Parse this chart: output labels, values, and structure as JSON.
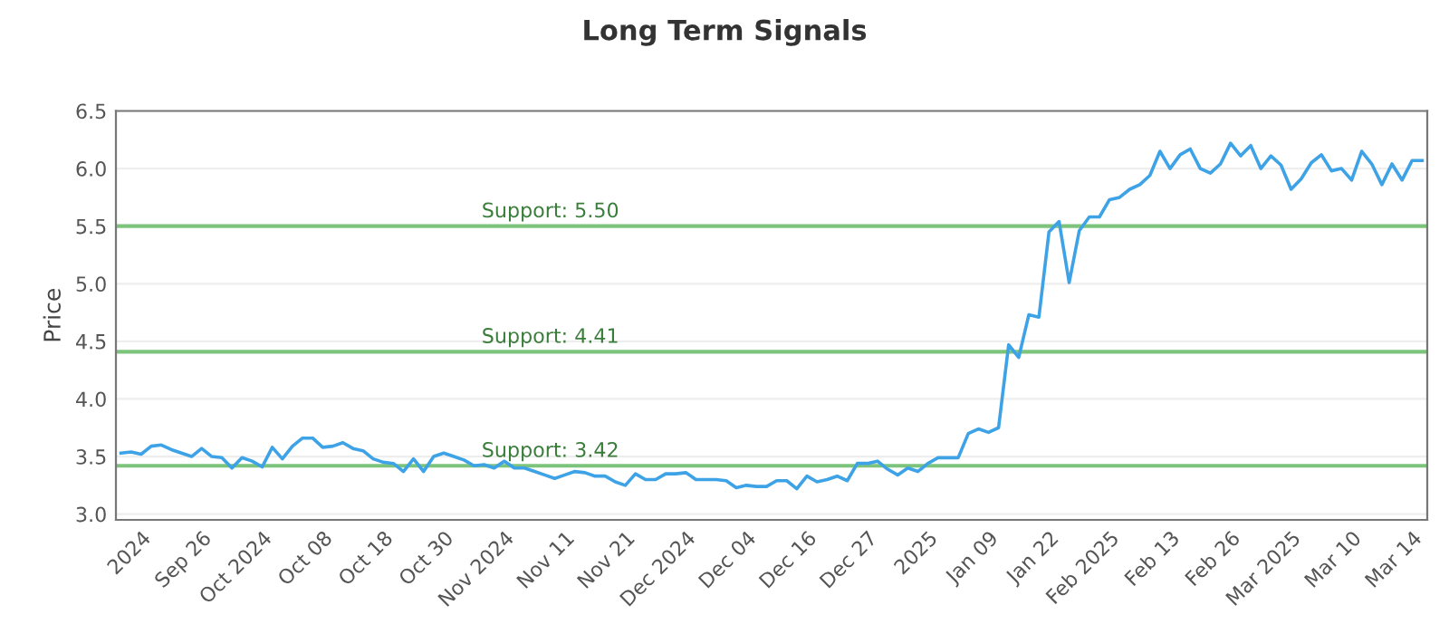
{
  "chart_data": {
    "type": "line",
    "title": "Long Term Signals",
    "ylabel": "Price",
    "categories": [
      null,
      null,
      "2024",
      null,
      null,
      null,
      null,
      null,
      "Sep 26",
      null,
      null,
      null,
      null,
      null,
      "Oct 2024",
      null,
      null,
      null,
      null,
      null,
      "Oct 08",
      null,
      null,
      null,
      null,
      null,
      "Oct 18",
      null,
      null,
      null,
      null,
      null,
      "Oct 30",
      null,
      null,
      null,
      null,
      null,
      "Nov 2024",
      null,
      null,
      null,
      null,
      null,
      "Nov 11",
      null,
      null,
      null,
      null,
      null,
      "Nov 21",
      null,
      null,
      null,
      null,
      null,
      "Dec 2024",
      null,
      null,
      null,
      null,
      null,
      "Dec 04",
      null,
      null,
      null,
      null,
      null,
      "Dec 16",
      null,
      null,
      null,
      null,
      null,
      "Dec 27",
      null,
      null,
      null,
      null,
      null,
      "2025",
      null,
      null,
      null,
      null,
      null,
      "Jan 09",
      null,
      null,
      null,
      null,
      null,
      "Jan 22",
      null,
      null,
      null,
      null,
      null,
      "Feb 2025",
      null,
      null,
      null,
      null,
      null,
      "Feb 13",
      null,
      null,
      null,
      null,
      null,
      "Feb 26",
      null,
      null,
      null,
      null,
      null,
      "Mar 2025",
      null,
      null,
      null,
      null,
      null,
      "Mar 10",
      null,
      null,
      null,
      null,
      null,
      "Mar 14",
      null
    ],
    "series": [
      {
        "color": "#3ea3e6",
        "values": [
          3.53,
          3.54,
          3.52,
          3.59,
          3.6,
          3.56,
          3.53,
          3.5,
          3.57,
          3.5,
          3.49,
          3.4,
          3.49,
          3.46,
          3.41,
          3.58,
          3.48,
          3.59,
          3.66,
          3.66,
          3.58,
          3.59,
          3.62,
          3.57,
          3.55,
          3.48,
          3.45,
          3.44,
          3.37,
          3.48,
          3.37,
          3.5,
          3.53,
          3.5,
          3.47,
          3.42,
          3.43,
          3.4,
          3.46,
          3.4,
          3.4,
          3.37,
          3.34,
          3.31,
          3.34,
          3.37,
          3.36,
          3.33,
          3.33,
          3.28,
          3.25,
          3.35,
          3.3,
          3.3,
          3.35,
          3.35,
          3.36,
          3.3,
          3.3,
          3.3,
          3.29,
          3.23,
          3.25,
          3.24,
          3.24,
          3.29,
          3.29,
          3.22,
          3.33,
          3.28,
          3.3,
          3.33,
          3.29,
          3.44,
          3.44,
          3.46,
          3.39,
          3.34,
          3.4,
          3.37,
          3.44,
          3.49,
          3.49,
          3.49,
          3.7,
          3.74,
          3.71,
          3.75,
          4.47,
          4.36,
          4.73,
          4.71,
          5.45,
          5.54,
          5.01,
          5.46,
          5.58,
          5.58,
          5.73,
          5.75,
          5.82,
          5.86,
          5.94,
          6.15,
          6.0,
          6.12,
          6.17,
          6.0,
          5.96,
          6.04,
          6.22,
          6.11,
          6.2,
          6.0,
          6.11,
          6.03,
          5.82,
          5.91,
          6.05,
          6.12,
          5.98,
          6.0,
          5.9,
          6.15,
          6.04,
          5.86,
          6.04,
          5.9,
          6.07,
          6.07
        ]
      }
    ],
    "ylim": [
      2.95,
      6.5
    ],
    "yticks": [
      {
        "value": 3,
        "label": "3.0"
      },
      3.5,
      {
        "value": 4,
        "label": "4.0"
      },
      4.5,
      {
        "value": 5,
        "label": "5.0"
      },
      5.5,
      {
        "value": 6,
        "label": "6.0"
      },
      6.5
    ],
    "grid": "y",
    "legend": false,
    "marker": "none",
    "line_style": "solid",
    "ref_lines": [
      {
        "axis": "y",
        "value": 5.5,
        "label": "Support: 5.50",
        "color": "#7cc47c"
      },
      {
        "axis": "y",
        "value": 4.41,
        "label": "Support: 4.41",
        "color": "#7cc47c"
      },
      {
        "axis": "y",
        "value": 3.42,
        "label": "Support: 3.42",
        "color": "#7cc47c"
      }
    ]
  }
}
